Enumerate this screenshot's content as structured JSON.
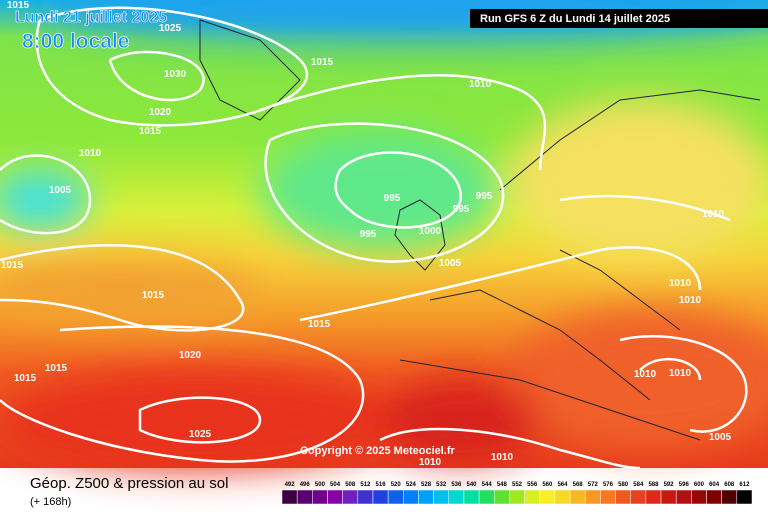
{
  "header": {
    "valid_date": "Lundi 21 juillet 2025",
    "local_time": "8:00 locale",
    "run": "Run GFS 6 Z du Lundi 14 juillet 2025"
  },
  "map": {
    "copyright": "Copyright © 2025 Meteociel.fr",
    "isobar_labels": [
      1015,
      1025,
      1030,
      1015,
      1010,
      1020,
      1015,
      1010,
      1005,
      995,
      995,
      995,
      995,
      1000,
      1005,
      1010,
      1015,
      1015,
      1015,
      1010,
      1010,
      1020,
      1015,
      1015,
      1010,
      1010,
      1025,
      1005,
      1010,
      1010
    ]
  },
  "footer": {
    "title": "Géop. Z500 & pression au sol",
    "lead": "(+ 168h)",
    "scale": [
      492,
      496,
      500,
      504,
      508,
      512,
      516,
      520,
      524,
      528,
      532,
      536,
      540,
      544,
      548,
      552,
      556,
      560,
      564,
      568,
      572,
      576,
      580,
      584,
      588,
      592,
      596,
      600,
      604,
      608,
      612
    ]
  }
}
